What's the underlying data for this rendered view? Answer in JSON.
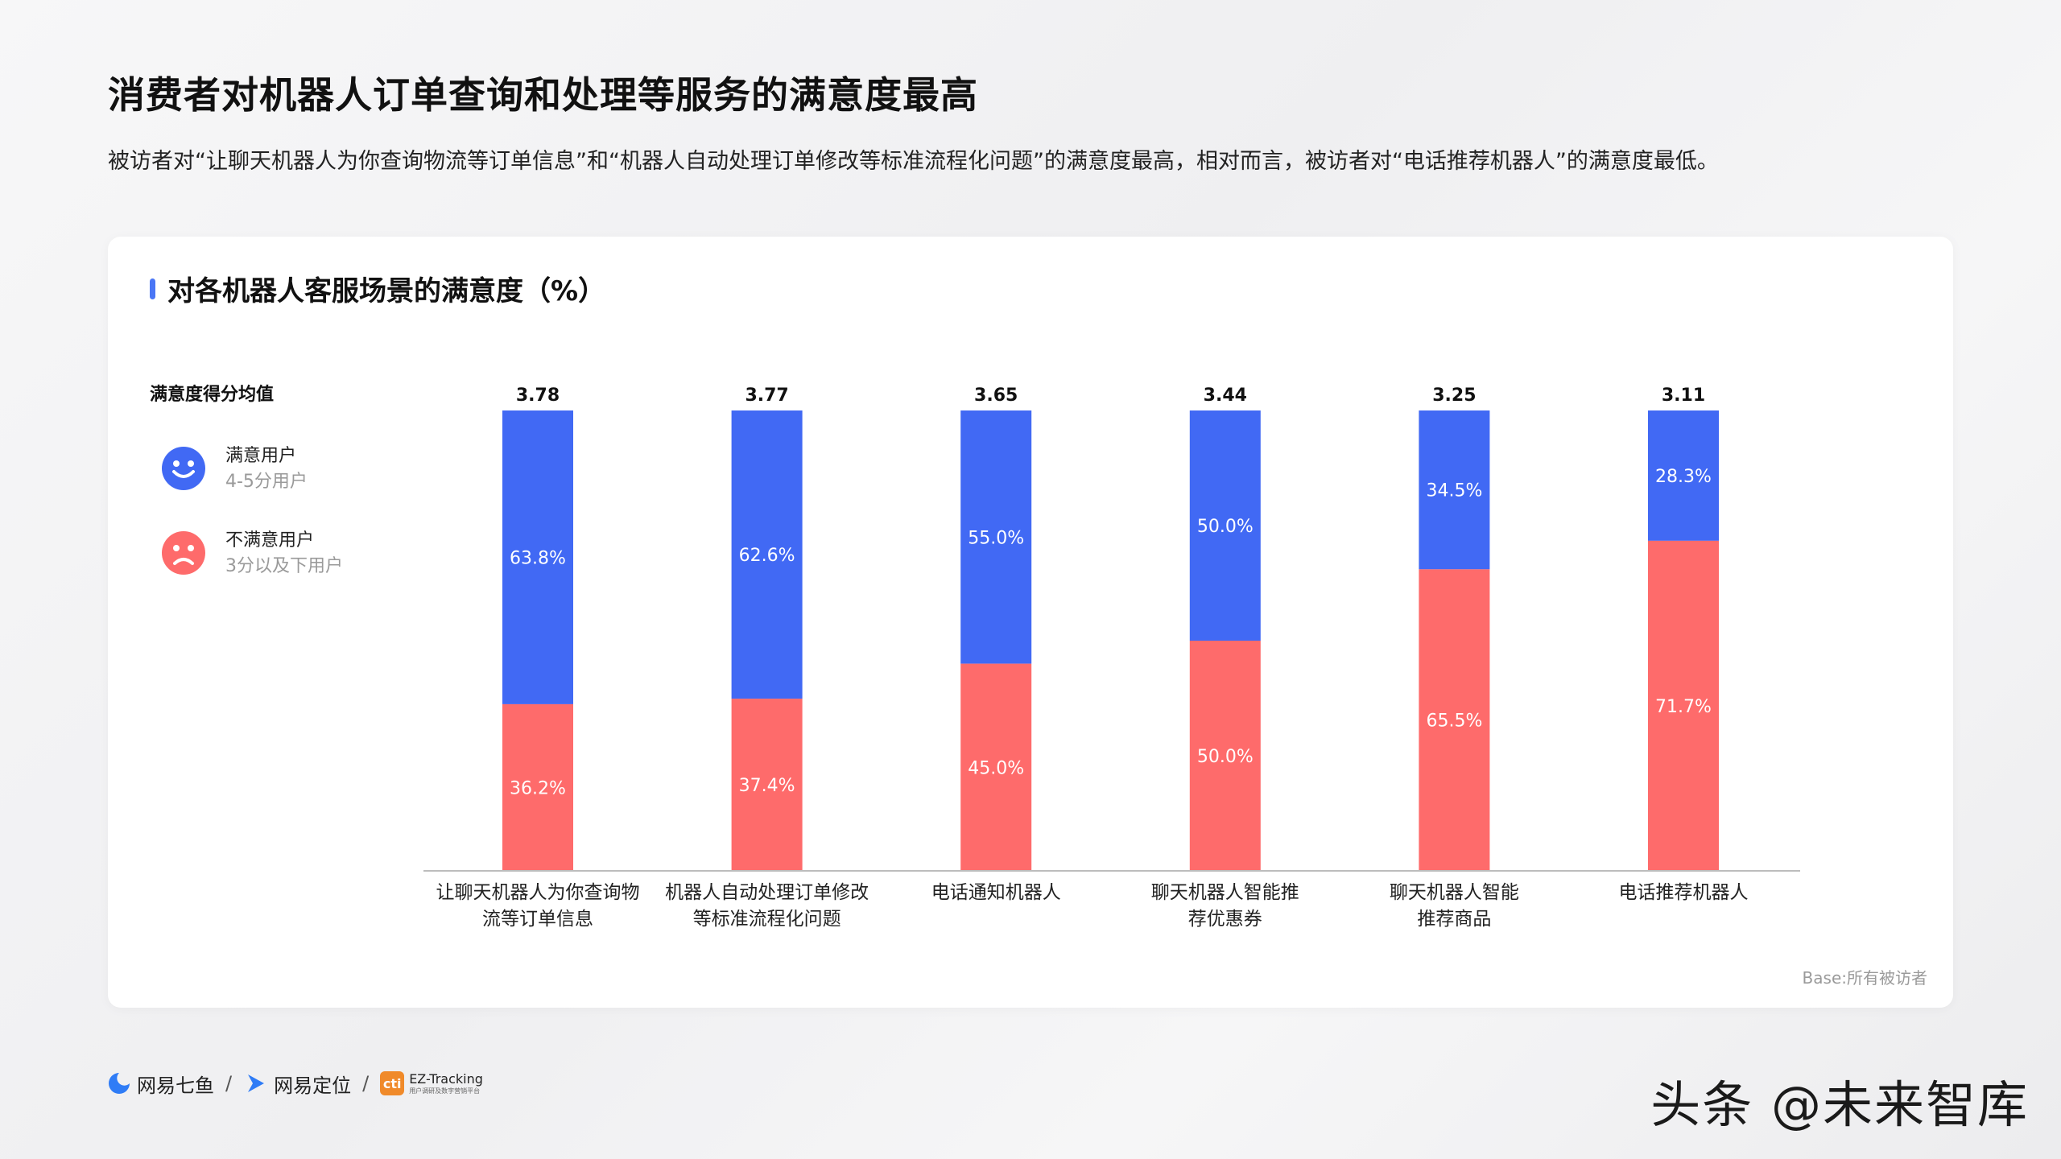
{
  "page": {
    "title": "消费者对机器人订单查询和处理等服务的满意度最高",
    "subtitle": "被访者对“让聊天机器人为你查询物流等订单信息”和“机器人自动处理订单修改等标准流程化问题”的满意度最高，相对而言，被访者对“电话推荐机器人”的满意度最低。"
  },
  "card": {
    "title": "对各机器人客服场景的满意度（%）",
    "base_note": "Base:所有被访者"
  },
  "legend": {
    "title": "满意度得分均值",
    "satisfied": {
      "label": "满意用户",
      "sub": "4-5分用户",
      "icon": "smile-face-icon"
    },
    "unsatisfied": {
      "label": "不满意用户",
      "sub": "3分以及下用户",
      "icon": "sad-face-icon"
    }
  },
  "colors": {
    "satisfied": "#4169f4",
    "unsatisfied": "#fe6b6b",
    "accent": "#4a76f5",
    "axis": "#bdbdbd"
  },
  "chart_data": {
    "type": "bar",
    "stacked": true,
    "categories": [
      [
        "让聊天机器人为你查询物",
        "流等订单信息"
      ],
      [
        "机器人自动处理订单修改",
        "等标准流程化问题"
      ],
      [
        "电话通知机器人"
      ],
      [
        "聊天机器人智能推",
        "荐优惠券"
      ],
      [
        "聊天机器人智能",
        "推荐商品"
      ],
      [
        "电话推荐机器人"
      ]
    ],
    "mean_scores": [
      "3.78",
      "3.77",
      "3.65",
      "3.44",
      "3.25",
      "3.11"
    ],
    "series": [
      {
        "name": "满意用户",
        "values": [
          63.8,
          62.6,
          55.0,
          50.0,
          34.5,
          28.3
        ],
        "labels": [
          "63.8%",
          "62.6%",
          "55.0%",
          "50.0%",
          "34.5%",
          "28.3%"
        ]
      },
      {
        "name": "不满意用户",
        "values": [
          36.2,
          37.4,
          45.0,
          50.0,
          65.5,
          71.7
        ],
        "labels": [
          "36.2%",
          "37.4%",
          "45.0%",
          "50.0%",
          "65.5%",
          "71.7%"
        ]
      }
    ],
    "ylim": [
      0,
      100
    ]
  },
  "footer": {
    "brand1": "网易七鱼",
    "brand2": "网易定位",
    "brand3_mark": "cti",
    "brand3_main": "EZ-Tracking",
    "brand3_sub": "用户调研及数字营销平台",
    "separator": "/",
    "watermark": "头条 @未来智库"
  }
}
